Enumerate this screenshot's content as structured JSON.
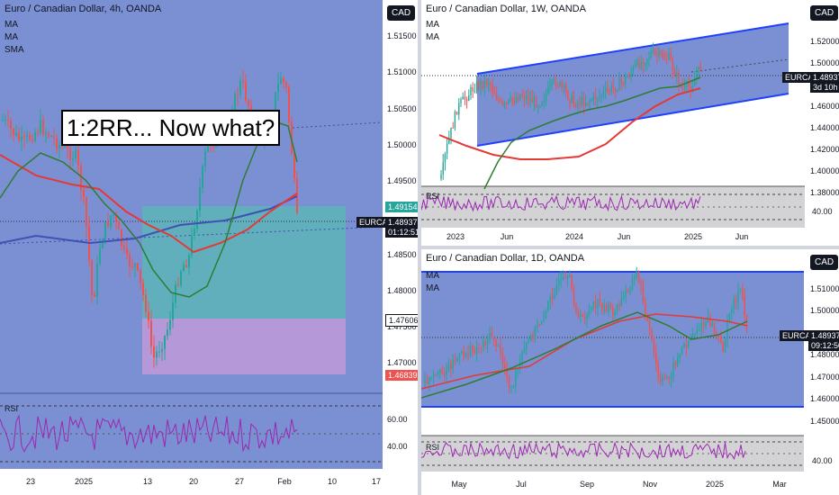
{
  "left": {
    "title": "Euro / Canadian Dollar, 4h, OANDA",
    "indicators": [
      "MA",
      "MA",
      "SMA"
    ],
    "currency": "CAD",
    "annotation": "1:2RR... Now what?",
    "price_axis": [
      "1.51500",
      "1.51000",
      "1.50500",
      "1.50000",
      "1.49500",
      "1.48500",
      "1.48000",
      "1.47500",
      "1.47000"
    ],
    "tags": {
      "target": "1.49154",
      "symbol": "EURCAD",
      "price": "1.48937",
      "countdown": "01:12:51",
      "entry": "1.47606",
      "stop": "1.46839"
    },
    "rsi": {
      "label": "RSI",
      "levels": [
        "60.00",
        "40.00"
      ]
    },
    "x_axis": [
      "23",
      "2025",
      "13",
      "20",
      "27",
      "Feb",
      "10",
      "17"
    ]
  },
  "top_right": {
    "title": "Euro / Canadian Dollar, 1W, OANDA",
    "indicators": [
      "MA",
      "MA"
    ],
    "currency": "CAD",
    "price_axis": [
      "1.52000",
      "1.50000",
      "1.46000",
      "1.44000",
      "1.42000",
      "1.40000",
      "1.38000"
    ],
    "tags": {
      "symbol": "EURCAD",
      "price": "1.48937",
      "countdown": "3d 10h"
    },
    "rsi": {
      "label": "RSI",
      "levels": [
        "40.00"
      ]
    },
    "x_axis": [
      "2023",
      "Jun",
      "2024",
      "Jun",
      "2025",
      "Jun"
    ]
  },
  "bottom_right": {
    "title": "Euro / Canadian Dollar, 1D, OANDA",
    "indicators": [
      "MA",
      "MA"
    ],
    "currency": "CAD",
    "price_axis": [
      "1.51000",
      "1.50000",
      "1.48000",
      "1.47000",
      "1.46000",
      "1.45000"
    ],
    "tags": {
      "symbol": "EURCAD",
      "price": "1.48937",
      "countdown": "09:12:50"
    },
    "rsi": {
      "label": "RSI",
      "levels": [
        "40.00"
      ]
    },
    "x_axis": [
      "May",
      "Jul",
      "Sep",
      "Nov",
      "2025",
      "Mar"
    ]
  },
  "colors": {
    "bg": "#7b8fd3",
    "bull": "#26a69a",
    "bear": "#ef5350",
    "ma_red": "#e53935",
    "ma_green": "#2e7d32",
    "ma_blue": "#3f51b5",
    "rsi": "#9c27b0",
    "channel": "#1e40ff"
  }
}
